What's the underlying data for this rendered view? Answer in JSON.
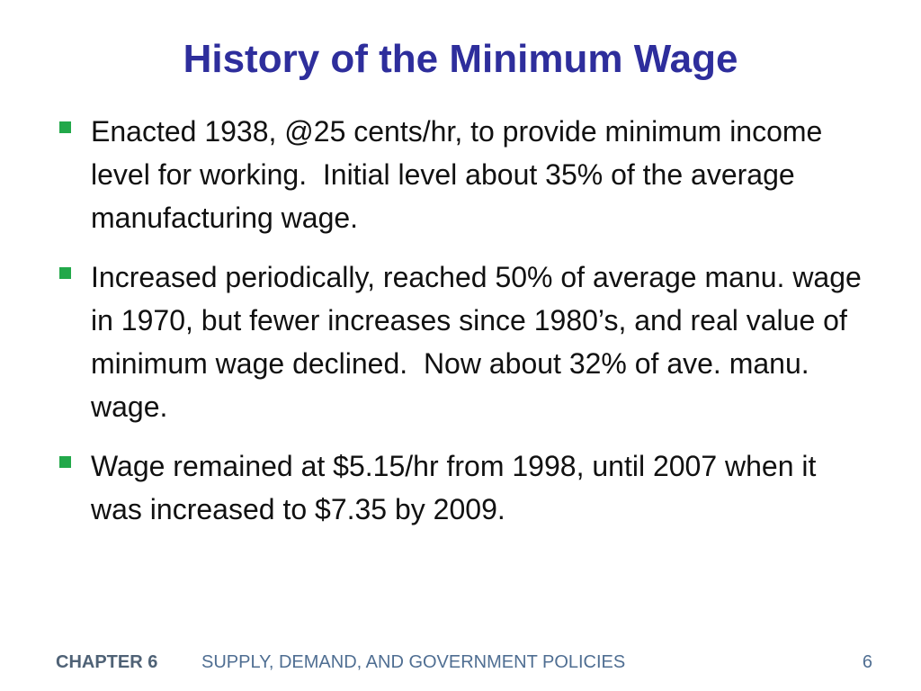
{
  "slide": {
    "title": "History of the Minimum Wage",
    "bullet_color": "#22a84a",
    "title_color": "#2e2e9c",
    "bullets": [
      {
        "text": "Enacted 1938, @25 cents/hr, to provide minimum income level for working.  Initial level about 35% of the average manufacturing wage."
      },
      {
        "text": "Increased periodically, reached 50% of average manu. wage in 1970, but fewer increases since 1980’s, and real value of minimum wage declined.  Now about 32% of ave. manu. wage."
      },
      {
        "text": "Wage remained at $5.15/hr from 1998, until 2007 when it was increased to $7.35 by 2009."
      }
    ]
  },
  "footer": {
    "chapter": "CHAPTER 6",
    "course": "SUPPLY, DEMAND, AND GOVERNMENT POLICIES",
    "page_number": "6"
  }
}
